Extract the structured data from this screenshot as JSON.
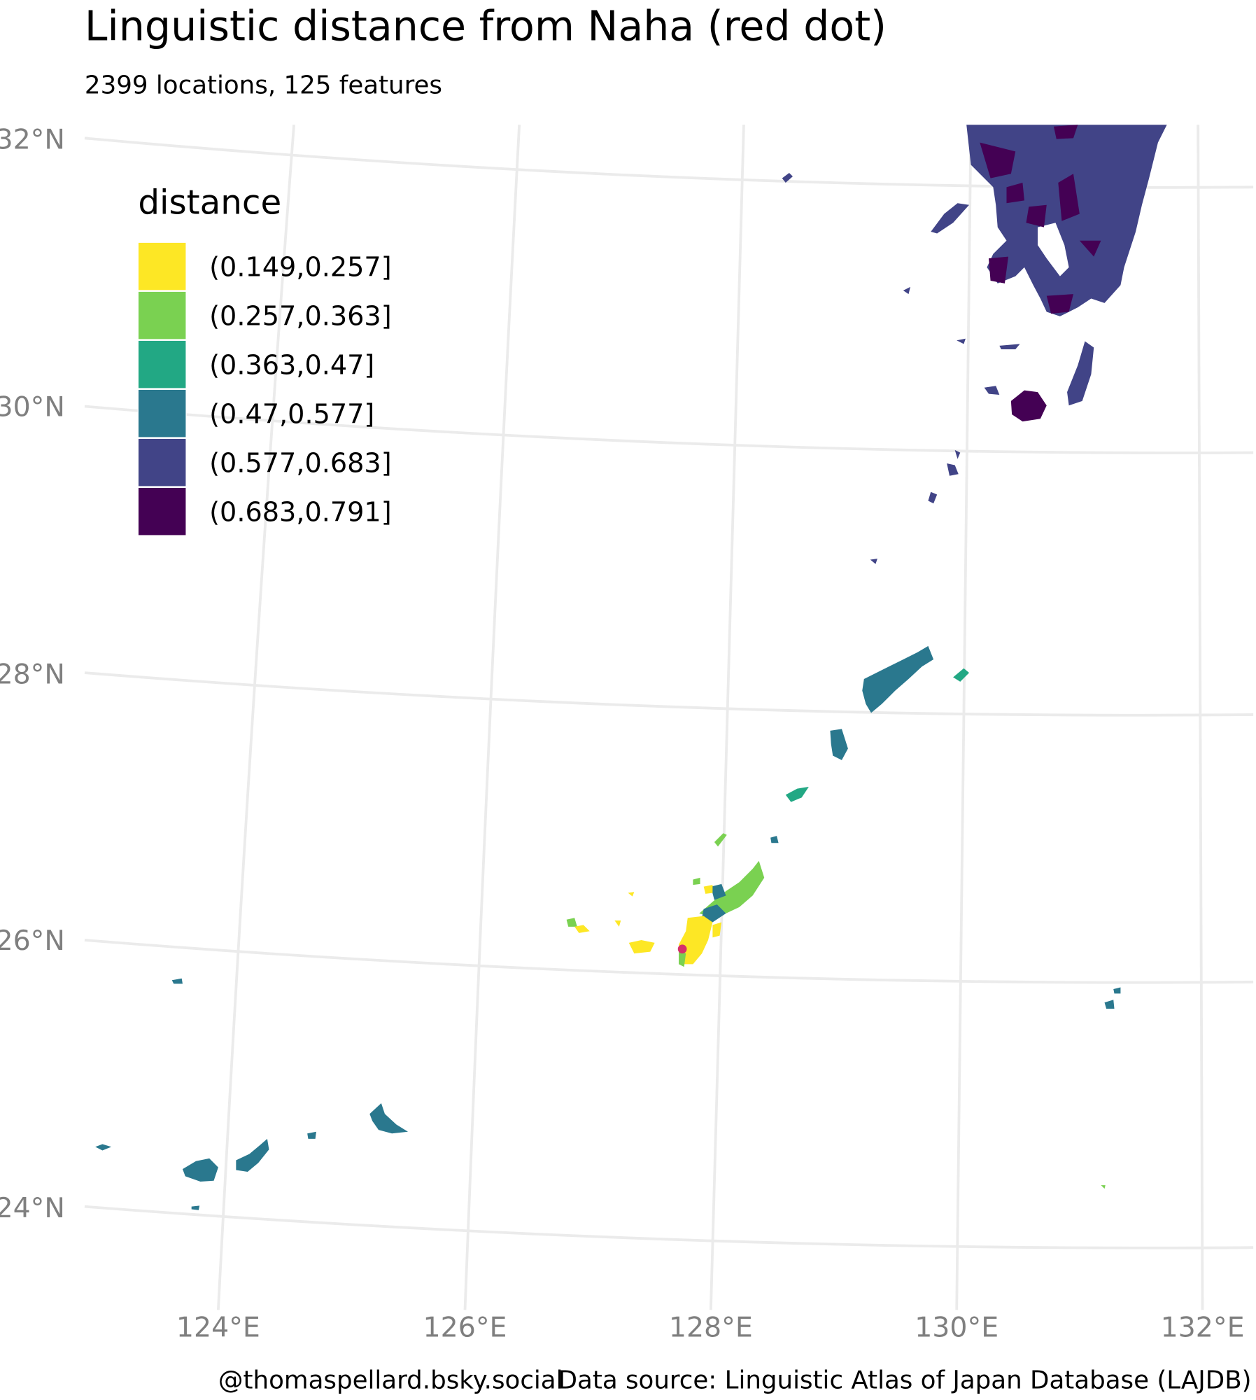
{
  "title": "Linguistic distance from Naha (red dot)",
  "subtitle": "2399 locations, 125 features",
  "legend": {
    "title": "distance",
    "items": [
      {
        "label": "(0.149,0.257]",
        "color": "#fde725"
      },
      {
        "label": "(0.257,0.363]",
        "color": "#7ad151"
      },
      {
        "label": "(0.363,0.47]",
        "color": "#22a884"
      },
      {
        "label": "(0.47,0.577]",
        "color": "#2a788e"
      },
      {
        "label": "(0.577,0.683]",
        "color": "#414487"
      },
      {
        "label": "(0.683,0.791]",
        "color": "#440154"
      }
    ]
  },
  "latitude_labels": [
    "32°N",
    "30°N",
    "28°N",
    "26°N",
    "24°N"
  ],
  "longitude_labels": [
    "124°E",
    "126°E",
    "128°E",
    "130°E",
    "132°E"
  ],
  "credits": [
    "@thomaspellard.bsky.social",
    "Data source: Linguistic Atlas of Japan Database (LAJDB)"
  ]
}
